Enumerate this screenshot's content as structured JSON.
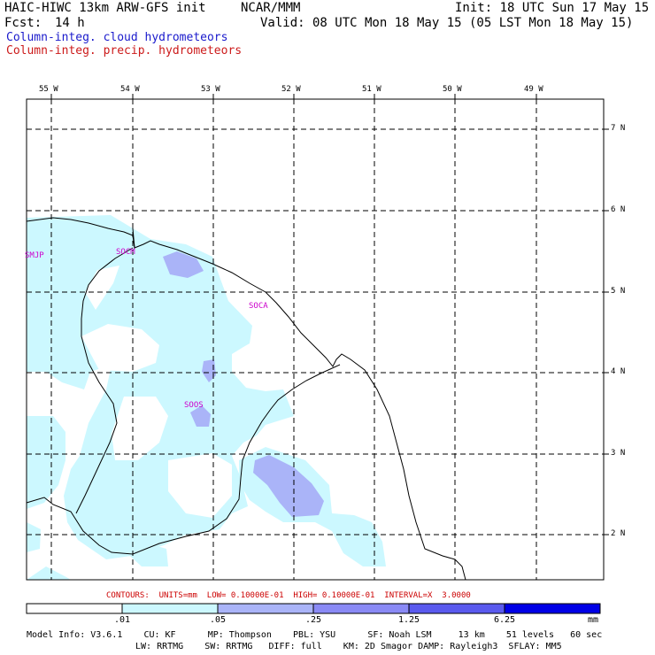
{
  "header": {
    "title": "HAIC-HIWC 13km ARW-GFS init",
    "org": "NCAR/MMM",
    "init": "Init: 18 UTC Sun 17 May 15",
    "fcst_label": "Fcst:",
    "fcst_value": "14 h",
    "valid": "Valid: 08 UTC Mon 18 May 15 (05 LST Mon 18 May 15)",
    "field1": "Column-integ. cloud hydrometeors",
    "field2": "Column-integ. precip. hydrometeors"
  },
  "map": {
    "lon_labels": [
      "55 W",
      "54 W",
      "53 W",
      "52 W",
      "51 W",
      "50 W",
      "49 W"
    ],
    "lat_labels": [
      "7 N",
      "6 N",
      "5 N",
      "4 N",
      "3 N",
      "2 N"
    ],
    "stations": [
      "SMJP",
      "SOCM",
      "SOCA",
      "SOOS"
    ],
    "colors": {
      "light": "#ccf8ff",
      "medium": "#aab4f8",
      "dark": "#6b6bee",
      "darkest": "#0000e6"
    }
  },
  "contours_text": "CONTOURS:  UNITS=mm  LOW= 0.10000E-01  HIGH= 0.10000E-01  INTERVAL=X  3.0000",
  "colorbar": {
    "labels": [
      ".01",
      ".05",
      ".25",
      "1.25",
      "6.25"
    ],
    "unit": "mm"
  },
  "model_info": {
    "line1": "Model Info: V3.6.1    CU: KF      MP: Thompson    PBL: YSU      SF: Noah LSM     13 km    51 levels   60 sec",
    "line2": "LW: RRTMG    SW: RRTMG   DIFF: full    KM: 2D Smagor DAMP: Rayleigh3  SFLAY: MM5"
  }
}
